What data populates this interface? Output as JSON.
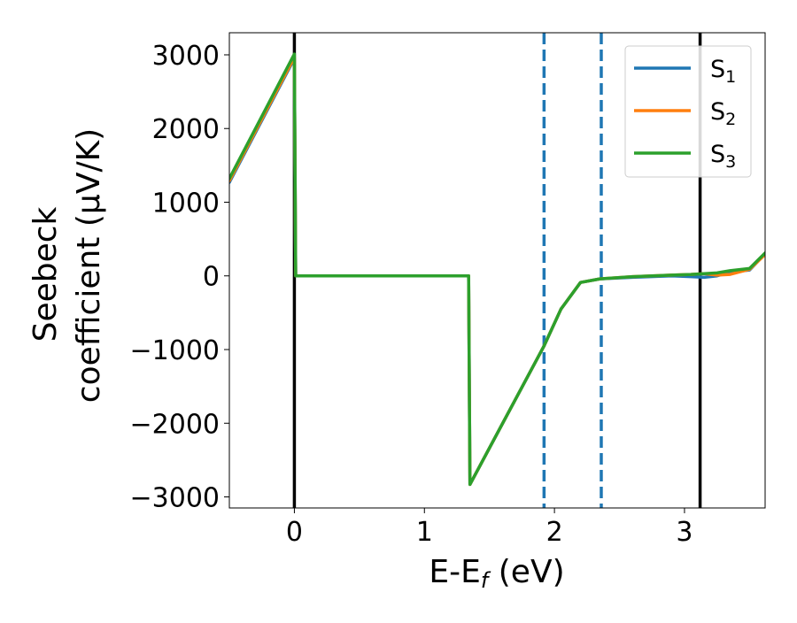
{
  "chart_data": {
    "type": "line",
    "title": "",
    "xlabel": "E-E_f (eV)",
    "xlabel_parts": {
      "main": "E-E",
      "sub": "f",
      "unit": " (eV)"
    },
    "ylabel": "Seebeck coefficient (μV/K)",
    "ylabel_lines": [
      "Seebeck",
      "coefficient  (μV/K)"
    ],
    "xlim": [
      -0.5,
      3.62
    ],
    "ylim": [
      -3150,
      3300
    ],
    "xticks": [
      0,
      1,
      2,
      3
    ],
    "xtick_labels": [
      "0",
      "1",
      "2",
      "3"
    ],
    "yticks": [
      -3000,
      -2000,
      -1000,
      0,
      1000,
      2000,
      3000
    ],
    "ytick_labels": [
      "−3000",
      "−2000",
      "−1000",
      "0",
      "1000",
      "2000",
      "3000"
    ],
    "grid": false,
    "legend_position": "top-right",
    "series": [
      {
        "name": "S1",
        "label_main": "S",
        "label_sub": "1",
        "color": "#1f77b4",
        "points": [
          [
            -0.5,
            1270
          ],
          [
            0.0,
            2950
          ],
          [
            0.01,
            0
          ],
          [
            1.34,
            0
          ],
          [
            1.35,
            -2830
          ],
          [
            1.92,
            -950
          ],
          [
            2.05,
            -450
          ],
          [
            2.2,
            -90
          ],
          [
            2.35,
            -40
          ],
          [
            2.6,
            -20
          ],
          [
            2.9,
            0
          ],
          [
            3.05,
            -10
          ],
          [
            3.15,
            -20
          ],
          [
            3.25,
            0
          ],
          [
            3.35,
            50
          ],
          [
            3.5,
            80
          ],
          [
            3.62,
            300
          ]
        ]
      },
      {
        "name": "S2",
        "label_main": "S",
        "label_sub": "2",
        "color": "#ff7f0e",
        "points": [
          [
            -0.5,
            1290
          ],
          [
            0.0,
            2970
          ],
          [
            0.01,
            0
          ],
          [
            1.34,
            0
          ],
          [
            1.35,
            -2830
          ],
          [
            1.92,
            -950
          ],
          [
            2.05,
            -450
          ],
          [
            2.2,
            -90
          ],
          [
            2.35,
            -40
          ],
          [
            2.6,
            -10
          ],
          [
            2.9,
            10
          ],
          [
            3.05,
            20
          ],
          [
            3.15,
            30
          ],
          [
            3.25,
            10
          ],
          [
            3.35,
            20
          ],
          [
            3.5,
            90
          ],
          [
            3.62,
            290
          ]
        ]
      },
      {
        "name": "S3",
        "label_main": "S",
        "label_sub": "3",
        "color": "#2ca02c",
        "points": [
          [
            -0.5,
            1320
          ],
          [
            0.0,
            3010
          ],
          [
            0.01,
            0
          ],
          [
            1.34,
            0
          ],
          [
            1.35,
            -2830
          ],
          [
            1.92,
            -950
          ],
          [
            2.05,
            -450
          ],
          [
            2.2,
            -90
          ],
          [
            2.35,
            -40
          ],
          [
            2.6,
            -10
          ],
          [
            2.9,
            10
          ],
          [
            3.05,
            20
          ],
          [
            3.15,
            30
          ],
          [
            3.25,
            40
          ],
          [
            3.35,
            70
          ],
          [
            3.5,
            100
          ],
          [
            3.62,
            310
          ]
        ]
      }
    ],
    "vertical_lines": [
      {
        "x": 0.0,
        "style": "solid",
        "color": "#000000"
      },
      {
        "x": 1.92,
        "style": "dashed",
        "color": "#1f77b4"
      },
      {
        "x": 2.36,
        "style": "dashed",
        "color": "#1f77b4"
      },
      {
        "x": 3.12,
        "style": "solid",
        "color": "#000000"
      }
    ]
  }
}
